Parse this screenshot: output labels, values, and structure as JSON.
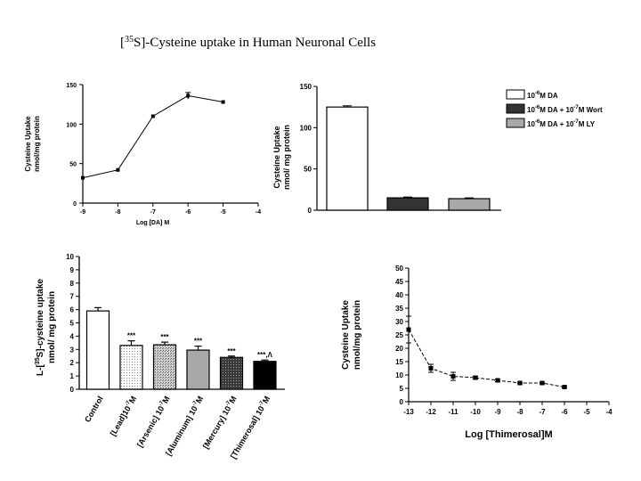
{
  "page": {
    "title_prefix": "[",
    "title_sup": "35",
    "title_rest": "S]-Cysteine uptake in Human Neuronal Cells"
  },
  "chart_data": [
    {
      "id": "chart1",
      "type": "line",
      "title": "",
      "ylabel_line1": "Cysteine Uptake",
      "ylabel_line2": "nmol/mg protein",
      "xlabel": "Log [DA] M",
      "xlim": [
        -9,
        -4
      ],
      "ylim": [
        0,
        150
      ],
      "xticks": [
        -9,
        -8,
        -7,
        -6,
        -5,
        -4
      ],
      "yticks": [
        0,
        50,
        100,
        150
      ],
      "x": [
        -9,
        -8,
        -7,
        -6,
        -5
      ],
      "y": [
        32,
        42,
        110,
        136,
        128
      ],
      "err": [
        0,
        0,
        0,
        4,
        0
      ]
    },
    {
      "id": "chart2",
      "type": "bar",
      "ylabel_line1": "Cysteine Uptake",
      "ylabel_line2": "nmol/ mg protein",
      "ylim": [
        0,
        150
      ],
      "yticks": [
        0,
        50,
        100,
        150
      ],
      "series": [
        {
          "name": "10-6M DA",
          "value": 125,
          "err": 1.5,
          "color": "#ffffff"
        },
        {
          "name": "10-6M DA + 10-7M Wort",
          "value": 15,
          "err": 1,
          "color": "#333333"
        },
        {
          "name": "10-6M DA + 10-7M LY",
          "value": 14,
          "err": 1,
          "color": "#a8a8a8"
        }
      ],
      "legend": [
        {
          "a": "10",
          "a_sup": "-6",
          "b": "M DA",
          "c": "",
          "c_sup": "",
          "d": ""
        },
        {
          "a": "10",
          "a_sup": "-6",
          "b": "M DA + 10",
          "c": "",
          "c_sup": "-7",
          "d": "M Wort"
        },
        {
          "a": "10",
          "a_sup": "-6",
          "b": "M DA + 10",
          "c": "",
          "c_sup": "-7",
          "d": "M LY"
        }
      ]
    },
    {
      "id": "chart3",
      "type": "bar",
      "ylabel_line1": "L-[ S]-cysteine uptake",
      "ylabel_sup": "35",
      "ylabel_line2": "nmol/ mg protein",
      "ylim": [
        0,
        10
      ],
      "yticks": [
        0,
        1,
        2,
        3,
        4,
        5,
        6,
        7,
        8,
        9,
        10
      ],
      "categories": [
        {
          "pre": "Control",
          "sup": "",
          "post": ""
        },
        {
          "pre": "[Lead]10",
          "sup": "-7",
          "post": "M"
        },
        {
          "pre": "[Arsenic] 10",
          "sup": "-7",
          "post": "M"
        },
        {
          "pre": "[Aluminum] 10",
          "sup": "-7",
          "post": "M"
        },
        {
          "pre": "[Mercury] 10",
          "sup": "-7",
          "post": "M"
        },
        {
          "pre": "[Thimerosal] 10",
          "sup": "-7",
          "post": "M"
        }
      ],
      "values": [
        5.9,
        3.3,
        3.35,
        2.95,
        2.4,
        2.1
      ],
      "errors": [
        0.25,
        0.35,
        0.2,
        0.3,
        0.1,
        0.1
      ],
      "annotations": [
        "",
        "***",
        "***",
        "***",
        "***",
        "***,Λ"
      ],
      "fills": [
        "white",
        "dots-light",
        "dots-medium",
        "gray",
        "dark-dots",
        "black"
      ]
    },
    {
      "id": "chart4",
      "type": "line",
      "ylabel_line1": "Cysteine Uptake",
      "ylabel_line2": "nmol/mg protein",
      "xlabel": "Log [Thimerosal]M",
      "xlim": [
        -13,
        -4
      ],
      "ylim": [
        0,
        50
      ],
      "xticks": [
        -13,
        -12,
        -11,
        -10,
        -9,
        -8,
        -7,
        -6,
        -5,
        -4
      ],
      "yticks": [
        0,
        5,
        10,
        15,
        20,
        25,
        30,
        35,
        40,
        45,
        50
      ],
      "x": [
        -13,
        -12,
        -11,
        -10,
        -9,
        -8,
        -7,
        -6
      ],
      "y": [
        27,
        12.5,
        9.5,
        9,
        8,
        7,
        7,
        5.5
      ],
      "err": [
        5,
        1.5,
        1.5,
        0.5,
        0.5,
        0.3,
        0.3,
        0.3
      ]
    }
  ]
}
